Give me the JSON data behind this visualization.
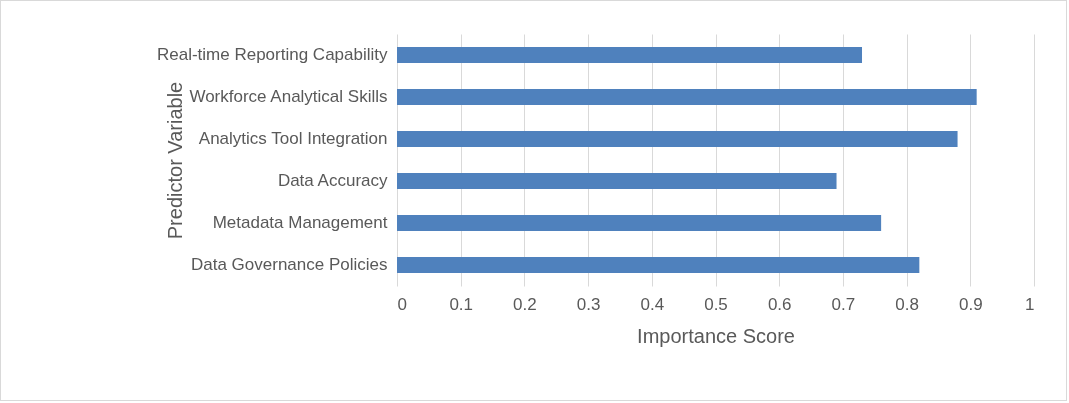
{
  "chart_data": {
    "type": "bar",
    "orientation": "horizontal",
    "xlabel": "Importance Score",
    "ylabel": "Predictor Variable",
    "categories": [
      "Real-time Reporting Capability",
      "Workforce Analytical Skills",
      "Analytics Tool Integration",
      "Data Accuracy",
      "Metadata Management",
      "Data Governance Policies"
    ],
    "values": [
      0.73,
      0.91,
      0.88,
      0.69,
      0.76,
      0.82
    ],
    "color": "#4f81bd",
    "xlim": [
      0,
      1
    ],
    "xticks": [
      0,
      0.1,
      0.2,
      0.3,
      0.4,
      0.5,
      0.6,
      0.7,
      0.8,
      0.9,
      1
    ],
    "grid": "x"
  }
}
